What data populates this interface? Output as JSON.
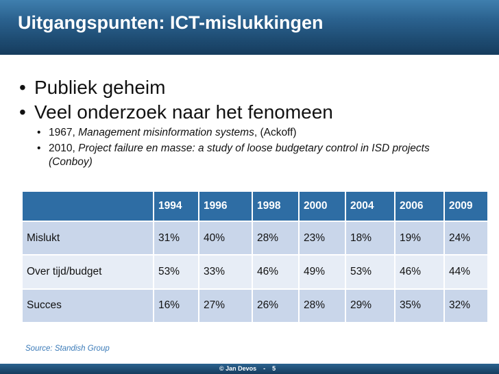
{
  "title": "Uitgangspunten: ICT-mislukkingen",
  "bullets_main": [
    "Publiek geheim",
    "Veel onderzoek naar het fenomeen"
  ],
  "bullets_sub": [
    {
      "year": "1967,",
      "title": "Management misinformation systems",
      "rest": ", (Ackoff)"
    },
    {
      "year": "2010,",
      "title": "Project failure en masse: a study of loose budgetary control in ISD projects (Conboy)",
      "rest": ""
    }
  ],
  "table": {
    "headers": [
      "",
      "1994",
      "1996",
      "1998",
      "2000",
      "2004",
      "2006",
      "2009"
    ],
    "rows": [
      [
        "Mislukt",
        "31%",
        "40%",
        "28%",
        "23%",
        "18%",
        "19%",
        "24%"
      ],
      [
        "Over tijd/budget",
        "53%",
        "33%",
        "46%",
        "49%",
        "53%",
        "46%",
        "44%"
      ],
      [
        "Succes",
        "16%",
        "27%",
        "26%",
        "28%",
        "29%",
        "35%",
        "32%"
      ]
    ]
  },
  "source": "Source: Standish Group",
  "footer": {
    "copyright": "© Jan Devos",
    "separator": "-",
    "page": "5"
  },
  "colors": {
    "title_bar": "#2b628f",
    "table_header": "#2e6da4",
    "row_odd": "#c9d6ea",
    "row_even": "#e7edf6",
    "source_text": "#3a7ab8"
  }
}
